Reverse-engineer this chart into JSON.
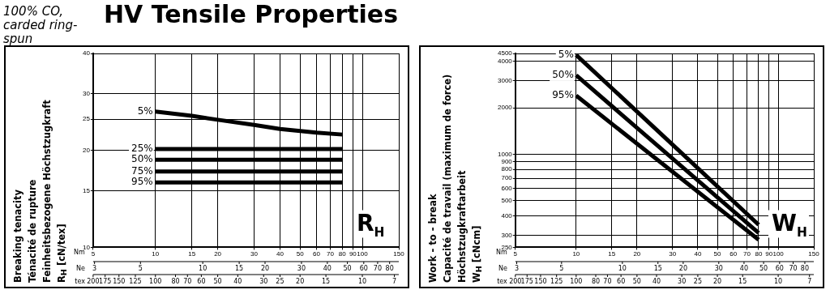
{
  "chart_data": [
    {
      "type": "line",
      "title": "HV Tensile Properties",
      "subtitle": "100% CO, carded ring-spun",
      "ylabel": "Breaking tenacity\nTénacité de rupture\nFeinheitsbezogene Höchstzugkraft\nR$_{H}$ [cN/tex]",
      "xlabel": "Nm",
      "log": "xy",
      "grid": true,
      "legend": false,
      "marker": "none",
      "line_style": "solid",
      "xlim": [
        5,
        150
      ],
      "xticks": [
        5,
        10,
        15,
        20,
        30,
        40,
        50,
        60,
        70,
        80,
        90,
        100,
        150
      ],
      "ylim": [
        10,
        40
      ],
      "yticks": [
        10,
        15,
        20,
        25,
        30,
        40
      ],
      "annotations": [
        "R$_{H}$",
        "Ne",
        "3",
        "5",
        "10",
        "15",
        "20",
        "30",
        "40",
        "50",
        "60",
        "70",
        "80",
        "tex",
        "200",
        "175",
        "150",
        "125",
        "100",
        "80",
        "70",
        "60",
        "50",
        "40",
        "30",
        "25",
        "20",
        "15",
        "10",
        "7"
      ],
      "series": [
        {
          "name": "5%",
          "color": "#000000",
          "x": [
            10,
            15,
            20,
            30,
            40,
            60,
            80
          ],
          "values": [
            26.4,
            25.6,
            24.9,
            24,
            23.3,
            22.7,
            22.4
          ]
        },
        {
          "name": "25%",
          "color": "#000000",
          "x": [
            10,
            80
          ],
          "values": [
            20.2,
            20.2
          ]
        },
        {
          "name": "50%",
          "color": "#000000",
          "x": [
            10,
            80
          ],
          "values": [
            18.7,
            18.7
          ]
        },
        {
          "name": "75%",
          "color": "#000000",
          "x": [
            10,
            80
          ],
          "values": [
            17.2,
            17.2
          ]
        },
        {
          "name": "95%",
          "color": "#000000",
          "x": [
            10,
            80
          ],
          "values": [
            15.9,
            15.9
          ]
        }
      ]
    },
    {
      "type": "line",
      "ylabel": "Work - to - break\nCapacité de travail (maximum de force)\nHöchstzugkraftarbeit\nW$_{H}$ [cNcm]",
      "xlabel": "Nm",
      "log": "xy",
      "grid": true,
      "legend": false,
      "marker": "none",
      "line_style": "solid",
      "xlim": [
        5,
        150
      ],
      "xticks": [
        5,
        10,
        15,
        20,
        30,
        40,
        50,
        60,
        70,
        80,
        90,
        100,
        150
      ],
      "ylim": [
        250,
        4500
      ],
      "yticks": [
        250,
        300,
        400,
        500,
        600,
        700,
        800,
        900,
        1000,
        2000,
        3000,
        4000,
        4500
      ],
      "annotations": [
        "W$_{H}$",
        "Ne",
        "3",
        "5",
        "10",
        "15",
        "20",
        "30",
        "40",
        "50",
        "60",
        "70",
        "80",
        "tex",
        "200",
        "175",
        "150",
        "125",
        "100",
        "80",
        "70",
        "60",
        "50",
        "40",
        "30",
        "25",
        "20",
        "15",
        "10",
        "7"
      ],
      "series": [
        {
          "name": "5%",
          "color": "#000000",
          "x": [
            10,
            80
          ],
          "values": [
            4400,
            350
          ]
        },
        {
          "name": "50%",
          "color": "#000000",
          "x": [
            10,
            80
          ],
          "values": [
            3250,
            310
          ]
        },
        {
          "name": "95%",
          "color": "#000000",
          "x": [
            10,
            80
          ],
          "values": [
            2400,
            280
          ]
        }
      ]
    }
  ]
}
